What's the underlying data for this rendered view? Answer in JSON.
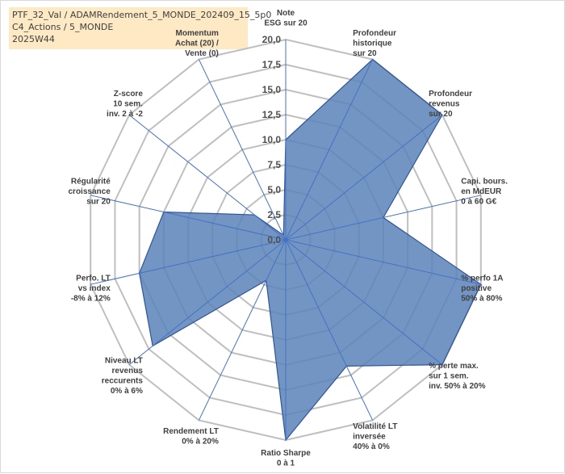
{
  "title": {
    "line1": "PTF_32_Val / ADAMRendement_5_MONDE_202409_15_5p0",
    "line2": "C4_Actions / 5_MONDE",
    "line3": "2025W44"
  },
  "colors": {
    "fill": "#5b83b8",
    "stroke": "#2f5597",
    "grid": "#bfbfbf",
    "axis": "#4472c4"
  },
  "chart_data": {
    "type": "radar",
    "rmin": 0,
    "rmax": 20,
    "ticks": [
      "0,0",
      "2,5",
      "5,0",
      "7,5",
      "10,0",
      "12,5",
      "15,0",
      "17,5",
      "20,0"
    ],
    "axes": [
      {
        "label": [
          "Note",
          "ESG sur 20"
        ],
        "value": 10.0
      },
      {
        "label": [
          "Profondeur",
          "historique",
          "sur 20"
        ],
        "value": 20.0
      },
      {
        "label": [
          "Profondeur",
          "revenus",
          "sur 20"
        ],
        "value": 20.0
      },
      {
        "label": [
          "Capi. bours.",
          "en MdEUR",
          "0 à 60 G€"
        ],
        "value": 10.0
      },
      {
        "label": [
          "% perfo 1A",
          "positive",
          "50% à 80%"
        ],
        "value": 20.0
      },
      {
        "label": [
          "% perte max.",
          "sur 1 sem.",
          "inv. 50% à 20%"
        ],
        "value": 20.0
      },
      {
        "label": [
          "Volatilité LT",
          "inversée",
          "40% à 0%"
        ],
        "value": 14.0
      },
      {
        "label": [
          "Ratio Sharpe",
          "0 à 1"
        ],
        "value": 20.0
      },
      {
        "label": [
          "Rendement LT",
          "0% à 20%"
        ],
        "value": 4.5
      },
      {
        "label": [
          "Niveau LT",
          "revenus",
          "reccurents",
          "0% à 6%"
        ],
        "value": 17.0
      },
      {
        "label": [
          "Perfo. LT",
          "vs index",
          "-8% à 12%"
        ],
        "value": 15.0
      },
      {
        "label": [
          "Régularité",
          "croissance",
          "sur 20"
        ],
        "value": 12.5
      },
      {
        "label": [
          "Z-score",
          "10 sem.",
          "inv. 2 à -2"
        ],
        "value": 4.0
      },
      {
        "label": [
          "Momentum",
          "Achat (20) /",
          "Vente (0)"
        ],
        "value": 0.5
      }
    ]
  }
}
